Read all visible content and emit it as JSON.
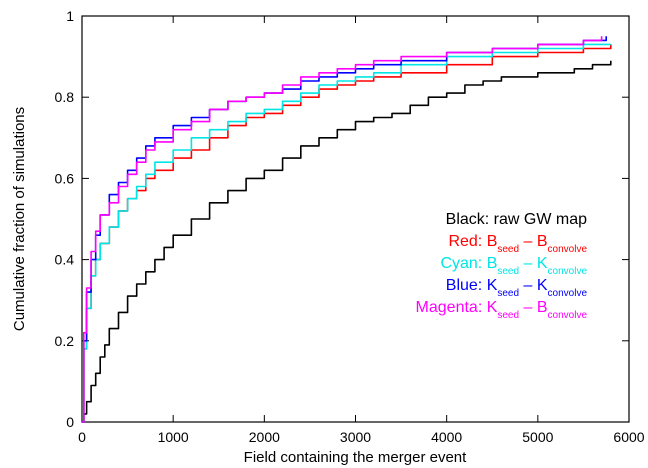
{
  "chart_data": {
    "type": "line",
    "title": "",
    "xlabel": "Field containing the merger event",
    "ylabel": "Cumulative fraction of simulations",
    "xlim": [
      0,
      6000
    ],
    "ylim": [
      0,
      1
    ],
    "x_ticks": [
      0,
      1000,
      2000,
      3000,
      4000,
      5000,
      6000
    ],
    "y_ticks": [
      0,
      0.2,
      0.4,
      0.6,
      0.8,
      1
    ],
    "y_tick_labels": [
      "0",
      "0.2",
      "0.4",
      "0.6",
      "0.8",
      "1"
    ],
    "grid": false,
    "legend_position": "center-right",
    "legend": [
      {
        "color": "#000000",
        "parts": [
          [
            "Black: raw GW map",
            ""
          ]
        ]
      },
      {
        "color": "#ff0000",
        "parts": [
          [
            "Red: B",
            ""
          ],
          [
            "seed",
            "sub"
          ],
          [
            " – B",
            ""
          ],
          [
            "convolve",
            "sub"
          ]
        ]
      },
      {
        "color": "#00e5e5",
        "parts": [
          [
            "Cyan: B",
            ""
          ],
          [
            "seed",
            "sub"
          ],
          [
            " – K",
            ""
          ],
          [
            "convolve",
            "sub"
          ]
        ]
      },
      {
        "color": "#0000ff",
        "parts": [
          [
            "Blue: K",
            ""
          ],
          [
            "seed",
            "sub"
          ],
          [
            " – K",
            ""
          ],
          [
            "convolve",
            "sub"
          ]
        ]
      },
      {
        "color": "#ff00ff",
        "parts": [
          [
            "Magenta: K",
            ""
          ],
          [
            "seed",
            "sub"
          ],
          [
            " – B",
            ""
          ],
          [
            "convolve",
            "sub"
          ]
        ]
      }
    ],
    "series": [
      {
        "color": "#000000",
        "x": [
          0,
          20,
          50,
          100,
          150,
          200,
          250,
          300,
          400,
          500,
          600,
          700,
          800,
          900,
          1000,
          1200,
          1400,
          1600,
          1800,
          2000,
          2200,
          2400,
          2600,
          2800,
          3000,
          3200,
          3400,
          3600,
          3800,
          4000,
          4200,
          4400,
          4600,
          4800,
          5000,
          5200,
          5400,
          5600,
          5800
        ],
        "y": [
          0,
          0.02,
          0.05,
          0.09,
          0.12,
          0.16,
          0.19,
          0.23,
          0.27,
          0.31,
          0.34,
          0.37,
          0.4,
          0.43,
          0.46,
          0.5,
          0.54,
          0.57,
          0.6,
          0.62,
          0.65,
          0.68,
          0.7,
          0.72,
          0.74,
          0.75,
          0.76,
          0.78,
          0.8,
          0.81,
          0.83,
          0.84,
          0.85,
          0.85,
          0.86,
          0.86,
          0.87,
          0.88,
          0.89
        ]
      },
      {
        "color": "#ff0000",
        "x": [
          0,
          20,
          50,
          100,
          150,
          200,
          300,
          400,
          500,
          600,
          700,
          800,
          1000,
          1200,
          1400,
          1600,
          1800,
          2000,
          2200,
          2400,
          2600,
          2800,
          3000,
          3200,
          3500,
          4000,
          4500,
          5000,
          5500,
          5800
        ],
        "y": [
          0,
          0.18,
          0.28,
          0.36,
          0.4,
          0.44,
          0.48,
          0.52,
          0.55,
          0.57,
          0.6,
          0.62,
          0.65,
          0.67,
          0.7,
          0.73,
          0.75,
          0.76,
          0.78,
          0.8,
          0.82,
          0.83,
          0.84,
          0.85,
          0.86,
          0.88,
          0.9,
          0.91,
          0.92,
          0.93
        ]
      },
      {
        "color": "#00e5e5",
        "x": [
          0,
          20,
          50,
          100,
          150,
          200,
          300,
          400,
          500,
          600,
          700,
          800,
          1000,
          1200,
          1400,
          1600,
          1800,
          2000,
          2200,
          2400,
          2600,
          2800,
          3000,
          3200,
          3500,
          4000,
          4500,
          5000,
          5500,
          5800
        ],
        "y": [
          0,
          0.18,
          0.28,
          0.36,
          0.4,
          0.44,
          0.48,
          0.52,
          0.55,
          0.58,
          0.61,
          0.64,
          0.67,
          0.7,
          0.72,
          0.74,
          0.76,
          0.77,
          0.79,
          0.81,
          0.83,
          0.84,
          0.85,
          0.86,
          0.88,
          0.9,
          0.91,
          0.92,
          0.93,
          0.93
        ]
      },
      {
        "color": "#0000ff",
        "x": [
          0,
          20,
          50,
          100,
          150,
          200,
          300,
          400,
          500,
          600,
          700,
          800,
          1000,
          1200,
          1400,
          1600,
          1800,
          2000,
          2200,
          2400,
          2600,
          2800,
          3000,
          3200,
          3500,
          4000,
          4500,
          5000,
          5500,
          5750
        ],
        "y": [
          0,
          0.2,
          0.32,
          0.4,
          0.46,
          0.51,
          0.56,
          0.59,
          0.62,
          0.65,
          0.68,
          0.7,
          0.73,
          0.75,
          0.77,
          0.79,
          0.8,
          0.81,
          0.82,
          0.84,
          0.85,
          0.86,
          0.87,
          0.88,
          0.89,
          0.91,
          0.92,
          0.93,
          0.94,
          0.95
        ]
      },
      {
        "color": "#ff00ff",
        "x": [
          0,
          20,
          50,
          100,
          150,
          200,
          300,
          400,
          500,
          600,
          700,
          800,
          1000,
          1200,
          1400,
          1600,
          1800,
          2000,
          2200,
          2400,
          2600,
          2800,
          3000,
          3200,
          3500,
          4000,
          4500,
          5000,
          5500,
          5700
        ],
        "y": [
          0,
          0.22,
          0.33,
          0.42,
          0.47,
          0.51,
          0.54,
          0.58,
          0.61,
          0.64,
          0.67,
          0.69,
          0.72,
          0.74,
          0.77,
          0.79,
          0.8,
          0.81,
          0.83,
          0.85,
          0.86,
          0.87,
          0.88,
          0.89,
          0.9,
          0.91,
          0.92,
          0.93,
          0.94,
          0.95
        ]
      }
    ]
  }
}
